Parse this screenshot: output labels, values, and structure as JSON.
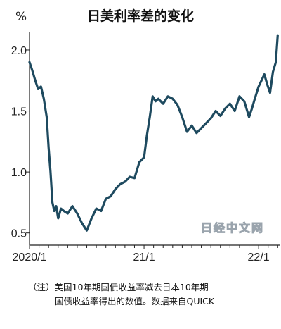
{
  "title": "日美利率差的变化",
  "unit": "%",
  "watermark": "日经中文网",
  "note": {
    "line1": "（注）美国10年期国债收益率减去日本10年期",
    "line2": "国债收益率得出的数值。数据来自QUICK"
  },
  "colors": {
    "line": "#1e4a5f",
    "axis": "#222222",
    "text": "#222222"
  },
  "chart_data": {
    "type": "line",
    "title": "日美利率差的变化",
    "ylabel": "%",
    "ylim": [
      0.4,
      2.15
    ],
    "xlim": [
      0,
      26.2
    ],
    "yticks": [
      0.5,
      1.0,
      1.5,
      2.0
    ],
    "ytick_labels": [
      "0.5",
      "1.0",
      "1.5",
      "2.0"
    ],
    "xticks": [
      0,
      12,
      24
    ],
    "xtick_labels": [
      "2020/1",
      "21/1",
      "22/1"
    ],
    "grid": false,
    "series": [
      {
        "x": [
          0,
          0.3,
          0.6,
          0.9,
          1.2,
          1.5,
          1.8,
          2.0,
          2.2,
          2.4,
          2.6,
          2.8,
          3.0,
          3.3,
          3.6,
          4.0,
          4.5,
          5.0,
          5.5,
          6.0,
          6.5,
          7.0,
          7.5,
          8.0,
          8.5,
          9.0,
          9.5,
          10.0,
          10.5,
          11.0,
          11.5,
          12.0,
          12.3,
          12.6,
          12.9,
          13.2,
          13.5,
          14.0,
          14.5,
          15.0,
          15.5,
          16.0,
          16.5,
          17.0,
          17.5,
          18.0,
          18.5,
          19.0,
          19.5,
          20.0,
          20.5,
          21.0,
          21.5,
          22.0,
          22.5,
          23.0,
          23.3,
          23.6,
          24.0,
          24.3,
          24.6,
          24.9,
          25.2,
          25.5,
          25.8,
          26.0
        ],
        "y": [
          1.9,
          1.83,
          1.75,
          1.68,
          1.7,
          1.6,
          1.45,
          1.2,
          1.0,
          0.75,
          0.68,
          0.72,
          0.62,
          0.7,
          0.68,
          0.66,
          0.72,
          0.66,
          0.58,
          0.52,
          0.62,
          0.7,
          0.68,
          0.78,
          0.8,
          0.86,
          0.9,
          0.92,
          0.96,
          0.95,
          1.08,
          1.12,
          1.3,
          1.45,
          1.62,
          1.58,
          1.6,
          1.56,
          1.62,
          1.6,
          1.55,
          1.45,
          1.33,
          1.38,
          1.32,
          1.36,
          1.4,
          1.44,
          1.5,
          1.46,
          1.52,
          1.56,
          1.5,
          1.62,
          1.58,
          1.45,
          1.52,
          1.6,
          1.7,
          1.75,
          1.8,
          1.72,
          1.65,
          1.82,
          1.9,
          2.12
        ]
      }
    ]
  }
}
